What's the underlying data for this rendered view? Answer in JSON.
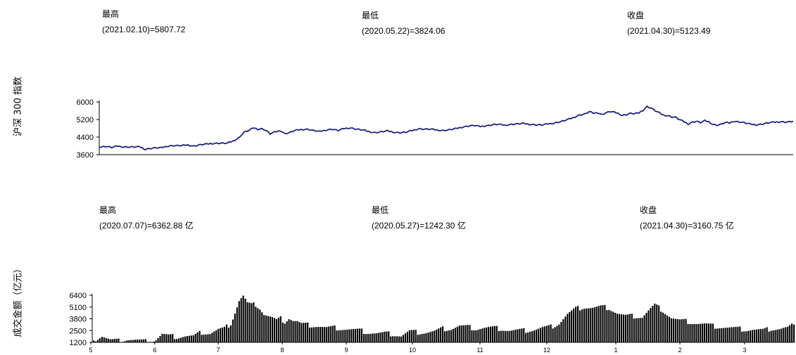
{
  "index_chart": {
    "ylabel": "沪深 300 指数",
    "stats": [
      {
        "label": "最高",
        "value": "(2021.02.10)=5807.72"
      },
      {
        "label": "最低",
        "value": "(2020.05.22)=3824.06"
      },
      {
        "label": "收盘",
        "value": "(2021.04.30)=5123.49"
      }
    ]
  },
  "volume_chart": {
    "ylabel": "成交金额（亿元）",
    "stats": [
      {
        "label": "最高",
        "value": "(2020.07.07)=6362.88 亿"
      },
      {
        "label": "最低",
        "value": "(2020.05.27)=1242.30 亿"
      },
      {
        "label": "收盘",
        "value": "(2021.04.30)=3160.75 亿"
      }
    ]
  },
  "chart_data": [
    {
      "type": "line",
      "ylabel": "沪深 300 指数",
      "yticks": [
        6000,
        5200,
        4400,
        3600
      ],
      "ylim": [
        3600,
        6000
      ],
      "color": "#1a237e",
      "keypoints": [
        [
          0,
          3930
        ],
        [
          3,
          3980
        ],
        [
          6,
          3930
        ],
        [
          9,
          3990
        ],
        [
          12,
          3950
        ],
        [
          16,
          3950
        ],
        [
          20,
          3950
        ],
        [
          22,
          3850
        ],
        [
          24,
          3870
        ],
        [
          27,
          3910
        ],
        [
          30,
          3910
        ],
        [
          33,
          3990
        ],
        [
          36,
          4010
        ],
        [
          40,
          4010
        ],
        [
          43,
          4040
        ],
        [
          46,
          3990
        ],
        [
          49,
          4050
        ],
        [
          52,
          4080
        ],
        [
          55,
          4110
        ],
        [
          58,
          4120
        ],
        [
          62,
          4120
        ],
        [
          65,
          4220
        ],
        [
          68,
          4380
        ],
        [
          70,
          4600
        ],
        [
          73,
          4720
        ],
        [
          75,
          4820
        ],
        [
          77,
          4760
        ],
        [
          79,
          4780
        ],
        [
          81,
          4700
        ],
        [
          83,
          4550
        ],
        [
          85,
          4620
        ],
        [
          88,
          4700
        ],
        [
          90,
          4560
        ],
        [
          92,
          4590
        ],
        [
          95,
          4700
        ],
        [
          98,
          4740
        ],
        [
          101,
          4760
        ],
        [
          104,
          4700
        ],
        [
          107,
          4650
        ],
        [
          110,
          4720
        ],
        [
          113,
          4760
        ],
        [
          116,
          4700
        ],
        [
          119,
          4790
        ],
        [
          122,
          4820
        ],
        [
          125,
          4760
        ],
        [
          128,
          4720
        ],
        [
          131,
          4650
        ],
        [
          134,
          4600
        ],
        [
          137,
          4640
        ],
        [
          140,
          4680
        ],
        [
          143,
          4620
        ],
        [
          146,
          4600
        ],
        [
          149,
          4620
        ],
        [
          152,
          4700
        ],
        [
          155,
          4780
        ],
        [
          158,
          4760
        ],
        [
          161,
          4760
        ],
        [
          164,
          4720
        ],
        [
          167,
          4700
        ],
        [
          170,
          4730
        ],
        [
          173,
          4780
        ],
        [
          176,
          4850
        ],
        [
          179,
          4900
        ],
        [
          182,
          4930
        ],
        [
          185,
          4880
        ],
        [
          188,
          4920
        ],
        [
          191,
          4960
        ],
        [
          194,
          4980
        ],
        [
          197,
          4940
        ],
        [
          200,
          4980
        ],
        [
          203,
          5000
        ],
        [
          206,
          5020
        ],
        [
          209,
          4980
        ],
        [
          212,
          4960
        ],
        [
          215,
          4950
        ],
        [
          218,
          5000
        ],
        [
          221,
          5040
        ],
        [
          224,
          5100
        ],
        [
          227,
          5180
        ],
        [
          230,
          5280
        ],
        [
          233,
          5400
        ],
        [
          236,
          5450
        ],
        [
          238,
          5560
        ],
        [
          240,
          5480
        ],
        [
          242,
          5520
        ],
        [
          244,
          5420
        ],
        [
          246,
          5500
        ],
        [
          248,
          5560
        ],
        [
          250,
          5530
        ],
        [
          252,
          5480
        ],
        [
          254,
          5390
        ],
        [
          256,
          5420
        ],
        [
          258,
          5480
        ],
        [
          260,
          5460
        ],
        [
          262,
          5500
        ],
        [
          264,
          5620
        ],
        [
          266,
          5790
        ],
        [
          268,
          5720
        ],
        [
          270,
          5600
        ],
        [
          272,
          5500
        ],
        [
          274,
          5400
        ],
        [
          276,
          5380
        ],
        [
          278,
          5320
        ],
        [
          280,
          5300
        ],
        [
          282,
          5180
        ],
        [
          284,
          5100
        ],
        [
          286,
          5000
        ],
        [
          288,
          5080
        ],
        [
          290,
          5120
        ],
        [
          292,
          5060
        ],
        [
          294,
          5140
        ],
        [
          296,
          5100
        ],
        [
          298,
          4980
        ],
        [
          300,
          4940
        ],
        [
          302,
          4980
        ],
        [
          304,
          5060
        ],
        [
          306,
          5040
        ],
        [
          308,
          5120
        ],
        [
          310,
          5100
        ],
        [
          313,
          5060
        ],
        [
          316,
          4990
        ],
        [
          319,
          4960
        ],
        [
          322,
          4990
        ],
        [
          325,
          5050
        ],
        [
          328,
          5080
        ],
        [
          331,
          5100
        ],
        [
          334,
          5080
        ],
        [
          337,
          5123
        ]
      ]
    },
    {
      "type": "bar",
      "ylabel": "成交金额（亿元）",
      "yticks": [
        6400,
        5100,
        3800,
        2500,
        1200
      ],
      "ylim": [
        1200,
        6400
      ],
      "xticks": [
        "5",
        "6",
        "7",
        "8",
        "9",
        "10",
        "11",
        "12",
        "1",
        "2",
        "3"
      ],
      "color": "#000000",
      "keypoints": [
        [
          0,
          1400
        ],
        [
          4,
          1900
        ],
        [
          8,
          1450
        ],
        [
          12,
          1350
        ],
        [
          16,
          1550
        ],
        [
          20,
          1450
        ],
        [
          24,
          1300
        ],
        [
          27,
          1250
        ],
        [
          30,
          1500
        ],
        [
          33,
          2100
        ],
        [
          36,
          1900
        ],
        [
          40,
          1800
        ],
        [
          44,
          1900
        ],
        [
          48,
          1850
        ],
        [
          52,
          2300
        ],
        [
          56,
          2200
        ],
        [
          60,
          2600
        ],
        [
          63,
          2700
        ],
        [
          66,
          3300
        ],
        [
          68,
          4500
        ],
        [
          70,
          5800
        ],
        [
          72,
          6360
        ],
        [
          74,
          5500
        ],
        [
          76,
          5300
        ],
        [
          78,
          5400
        ],
        [
          80,
          5000
        ],
        [
          82,
          4300
        ],
        [
          84,
          4100
        ],
        [
          86,
          3900
        ],
        [
          88,
          3600
        ],
        [
          90,
          3800
        ],
        [
          92,
          3500
        ],
        [
          94,
          3900
        ],
        [
          96,
          3600
        ],
        [
          98,
          3500
        ],
        [
          100,
          3200
        ],
        [
          104,
          3100
        ],
        [
          108,
          3000
        ],
        [
          112,
          2800
        ],
        [
          116,
          2800
        ],
        [
          120,
          2700
        ],
        [
          124,
          2600
        ],
        [
          128,
          2500
        ],
        [
          132,
          2300
        ],
        [
          136,
          2200
        ],
        [
          140,
          2200
        ],
        [
          144,
          2100
        ],
        [
          148,
          1900
        ],
        [
          152,
          2400
        ],
        [
          156,
          2300
        ],
        [
          160,
          2300
        ],
        [
          164,
          2400
        ],
        [
          168,
          2700
        ],
        [
          172,
          2700
        ],
        [
          176,
          3000
        ],
        [
          180,
          2900
        ],
        [
          184,
          2700
        ],
        [
          188,
          2800
        ],
        [
          192,
          2800
        ],
        [
          196,
          2700
        ],
        [
          200,
          2500
        ],
        [
          204,
          2500
        ],
        [
          208,
          2500
        ],
        [
          212,
          2600
        ],
        [
          216,
          2800
        ],
        [
          220,
          2900
        ],
        [
          224,
          3300
        ],
        [
          228,
          4300
        ],
        [
          232,
          4900
        ],
        [
          236,
          5100
        ],
        [
          240,
          5000
        ],
        [
          244,
          5100
        ],
        [
          248,
          5000
        ],
        [
          252,
          4400
        ],
        [
          256,
          4100
        ],
        [
          260,
          4100
        ],
        [
          264,
          4000
        ],
        [
          268,
          4900
        ],
        [
          270,
          5300
        ],
        [
          274,
          4700
        ],
        [
          278,
          3900
        ],
        [
          282,
          3600
        ],
        [
          286,
          3500
        ],
        [
          290,
          3300
        ],
        [
          294,
          3200
        ],
        [
          298,
          3000
        ],
        [
          302,
          2900
        ],
        [
          306,
          2800
        ],
        [
          310,
          2700
        ],
        [
          314,
          2600
        ],
        [
          318,
          2600
        ],
        [
          322,
          2500
        ],
        [
          326,
          2700
        ],
        [
          330,
          2700
        ],
        [
          334,
          2800
        ],
        [
          337,
          3160
        ]
      ]
    }
  ]
}
